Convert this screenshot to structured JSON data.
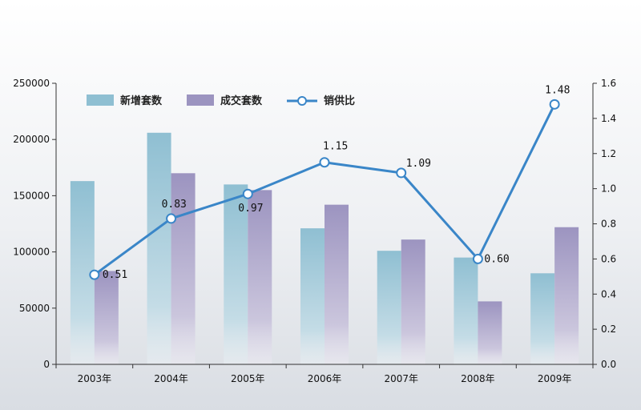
{
  "chart_data": {
    "type": "bar",
    "categories": [
      "2003年",
      "2004年",
      "2005年",
      "2006年",
      "2007年",
      "2008年",
      "2009年"
    ],
    "series": [
      {
        "name": "新增套数",
        "type": "bar",
        "axis": "left",
        "color": "#8fbfd2",
        "values": [
          163000,
          206000,
          160000,
          121000,
          101000,
          95000,
          81000
        ]
      },
      {
        "name": "成交套数",
        "type": "bar",
        "axis": "left",
        "color": "#9c94c0",
        "values": [
          83000,
          170000,
          155000,
          142000,
          111000,
          56000,
          122000
        ]
      },
      {
        "name": "销供比",
        "type": "line",
        "axis": "right",
        "color": "#3a86c8",
        "values": [
          0.51,
          0.83,
          0.97,
          1.15,
          1.09,
          0.6,
          1.48
        ]
      }
    ],
    "data_labels": [
      "0.51",
      "0.83",
      "0.97",
      "1.15",
      "1.09",
      "0.60",
      "1.48"
    ],
    "y_left": {
      "ylim": [
        0,
        250000
      ],
      "ticks": [
        "0",
        "50000",
        "100000",
        "150000",
        "200000",
        "250000"
      ]
    },
    "y_right": {
      "ylim": [
        0,
        1.6
      ],
      "ticks": [
        "0.0",
        "0.2",
        "0.4",
        "0.6",
        "0.8",
        "1.0",
        "1.2",
        "1.4",
        "1.6"
      ]
    },
    "legend_position": "top-left",
    "grid": false
  }
}
